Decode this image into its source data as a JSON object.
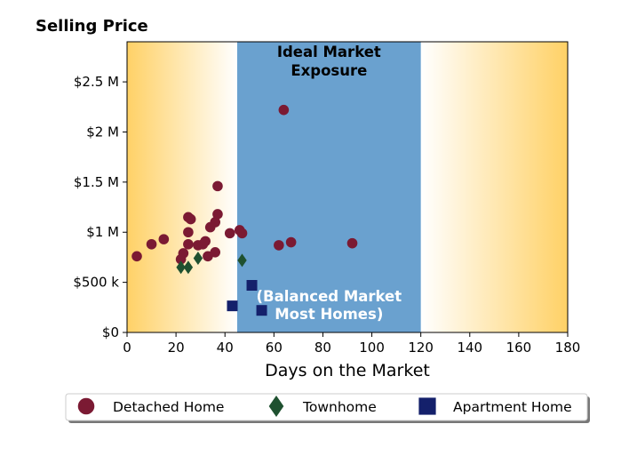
{
  "chart_data": {
    "type": "scatter",
    "title": "Selling Price",
    "xlabel": "Days on the Market",
    "ylabel": "",
    "xlim": [
      0,
      180
    ],
    "ylim": [
      0,
      2900000
    ],
    "x_ticks": [
      0,
      20,
      40,
      60,
      80,
      100,
      120,
      140,
      160,
      180
    ],
    "x_tick_labels": [
      "0",
      "20",
      "40",
      "60",
      "80",
      "100",
      "120",
      "140",
      "160",
      "180"
    ],
    "y_ticks": [
      0,
      500000,
      1000000,
      1500000,
      2000000,
      2500000
    ],
    "y_tick_labels": [
      "$0",
      "$500 k",
      "$1 M",
      "$1.5 M",
      "$2 M",
      "$2.5 M"
    ],
    "grid": false,
    "legend_placement": "bottom",
    "background": {
      "gradient_color": "#ffd166",
      "band": {
        "x_range": [
          45,
          120
        ],
        "color": "#6aa1cf",
        "top_label": [
          "Ideal Market",
          "Exposure"
        ],
        "bottom_label": [
          "(Balanced Market",
          "Most Homes)"
        ],
        "top_label_color": "#000000",
        "bottom_label_color": "#ffffff"
      }
    },
    "series": [
      {
        "name": "Detached Home",
        "marker": "circle",
        "color": "#7b1a33",
        "x": [
          4,
          10,
          15,
          23,
          22,
          25,
          25,
          25,
          26,
          29,
          31,
          32,
          33,
          34,
          36,
          36,
          37,
          37,
          42,
          46,
          47,
          62,
          64,
          67,
          92
        ],
        "y": [
          760000,
          880000,
          930000,
          790000,
          730000,
          1000000,
          1150000,
          880000,
          1130000,
          870000,
          880000,
          910000,
          760000,
          1050000,
          1100000,
          800000,
          1180000,
          1460000,
          990000,
          1020000,
          990000,
          870000,
          2220000,
          900000,
          890000
        ]
      },
      {
        "name": "Townhome",
        "marker": "diamond",
        "color": "#1f5130",
        "x": [
          22,
          25,
          29,
          47
        ],
        "y": [
          650000,
          650000,
          740000,
          720000
        ]
      },
      {
        "name": "Apartment Home",
        "marker": "square",
        "color": "#14206b",
        "x": [
          43,
          51,
          55
        ],
        "y": [
          265000,
          470000,
          220000
        ]
      }
    ]
  }
}
